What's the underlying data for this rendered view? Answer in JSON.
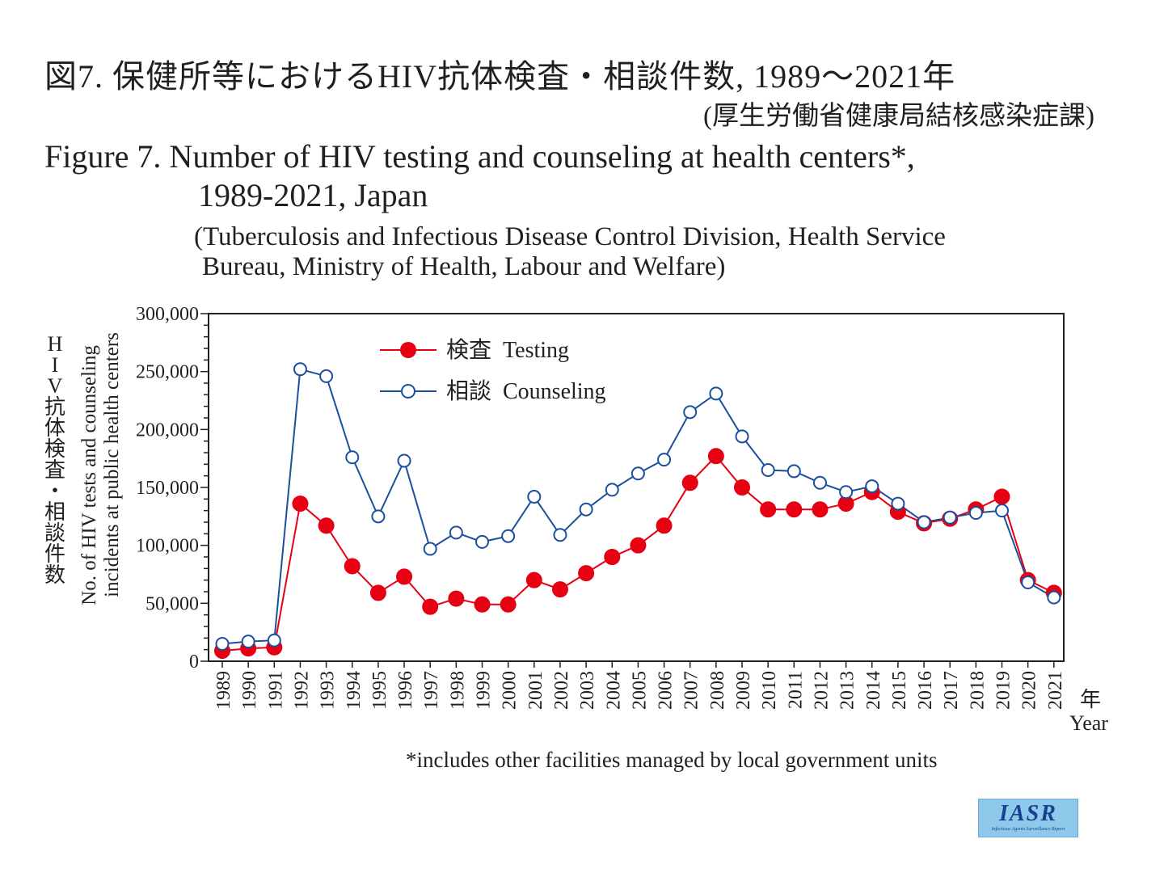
{
  "header": {
    "title_ja": "図7. 保健所等におけるHIV抗体検査・相談件数, 1989〜2021年",
    "source_ja": "(厚生労働省健康局結核感染症課)",
    "title_en_line1": "Figure 7. Number of HIV testing and counseling at health centers*,",
    "title_en_line2": "1989-2021, Japan",
    "source_en_line1": "(Tuberculosis and Infectious Disease Control Division, Health Service",
    "source_en_line2": "Bureau, Ministry of Health, Labour and Welfare)"
  },
  "footnote": "*includes other facilities managed by local government units",
  "logo": {
    "text": "IASR",
    "subtext": "Infectious Agents Surveillance Report"
  },
  "chart_data": {
    "type": "line",
    "title": "Number of HIV testing and counseling at health centers*, 1989-2021, Japan",
    "ylabel_ja": [
      "H",
      "I",
      "V",
      "抗",
      "体",
      "検",
      "査",
      "・",
      "相",
      "談",
      "件",
      "数"
    ],
    "ylabel_en_line1": "No. of HIV tests and counseling",
    "ylabel_en_line2": "incidents at public health centers",
    "xlabel_ja": "年",
    "xlabel_en": "Year",
    "ylim": [
      0,
      300000
    ],
    "yticks": [
      0,
      50000,
      100000,
      150000,
      200000,
      250000,
      300000
    ],
    "ytick_labels": [
      "0",
      "50,000",
      "100,000",
      "150,000",
      "200,000",
      "250,000",
      "300,000"
    ],
    "grid": false,
    "legend_position": "top-left",
    "x": [
      "1989",
      "1990",
      "1991",
      "1992",
      "1993",
      "1994",
      "1995",
      "1996",
      "1997",
      "1998",
      "1999",
      "2000",
      "2001",
      "2002",
      "2003",
      "2004",
      "2005",
      "2006",
      "2007",
      "2008",
      "2009",
      "2010",
      "2011",
      "2012",
      "2013",
      "2014",
      "2015",
      "2016",
      "2017",
      "2018",
      "2019",
      "2020",
      "2021"
    ],
    "series": [
      {
        "name": "Testing",
        "name_ja": "検査",
        "color": "#e60012",
        "marker": "filled-circle",
        "values": [
          9000,
          11000,
          12000,
          136000,
          117000,
          82000,
          59000,
          73000,
          47000,
          54000,
          49000,
          49000,
          70000,
          62000,
          76000,
          90000,
          100000,
          117000,
          154000,
          177000,
          150000,
          131000,
          131000,
          131000,
          136000,
          146000,
          129000,
          119000,
          123000,
          131000,
          142000,
          70000,
          59000
        ]
      },
      {
        "name": "Counseling",
        "name_ja": "相談",
        "color": "#1c4f9c",
        "marker": "open-circle",
        "values": [
          15000,
          17000,
          18000,
          252000,
          246000,
          176000,
          125000,
          173000,
          97000,
          111000,
          103000,
          108000,
          142000,
          109000,
          131000,
          148000,
          162000,
          174000,
          215000,
          231000,
          194000,
          165000,
          164000,
          154000,
          146000,
          151000,
          136000,
          120000,
          124000,
          128000,
          130000,
          68000,
          55000
        ]
      }
    ]
  }
}
